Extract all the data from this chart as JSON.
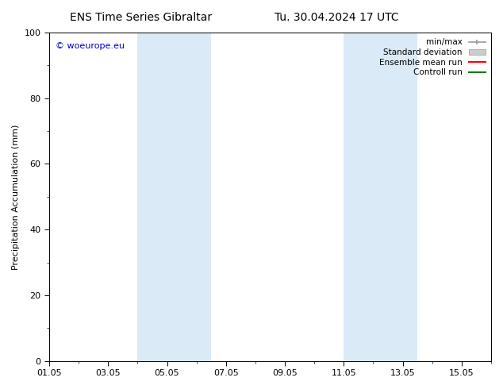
{
  "title_left": "ENS Time Series Gibraltar",
  "title_right": "Tu. 30.04.2024 17 UTC",
  "ylabel": "Precipitation Accumulation (mm)",
  "ylim": [
    0,
    100
  ],
  "yticks": [
    0,
    20,
    40,
    60,
    80,
    100
  ],
  "xtick_labels": [
    "01.05",
    "03.05",
    "05.05",
    "07.05",
    "09.05",
    "11.05",
    "13.05",
    "15.05"
  ],
  "xtick_positions": [
    0,
    2,
    4,
    6,
    8,
    10,
    12,
    14
  ],
  "xlim": [
    0,
    15
  ],
  "shaded_bands": [
    {
      "x_start": 3.0,
      "x_end": 5.5,
      "color": "#daeaf7"
    },
    {
      "x_start": 10.0,
      "x_end": 12.5,
      "color": "#daeaf7"
    }
  ],
  "legend_items": [
    {
      "label": "min/max",
      "color": "#999999",
      "lw": 1.2,
      "style": "minmax"
    },
    {
      "label": "Standard deviation",
      "color": "#cccccc",
      "lw": 5,
      "style": "band"
    },
    {
      "label": "Ensemble mean run",
      "color": "#ff0000",
      "lw": 1.5,
      "style": "line"
    },
    {
      "label": "Controll run",
      "color": "#008000",
      "lw": 1.5,
      "style": "line"
    }
  ],
  "watermark_text": "© woeurope.eu",
  "watermark_color": "#0000cc",
  "background_color": "#ffffff",
  "title_fontsize": 10,
  "axis_fontsize": 8,
  "tick_fontsize": 8,
  "legend_fontsize": 7.5
}
